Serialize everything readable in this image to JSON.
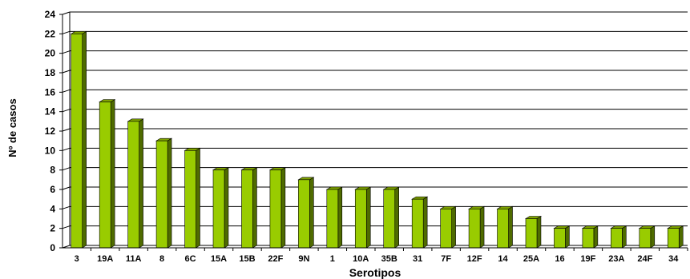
{
  "chart_data": {
    "type": "bar",
    "style": "3d-column",
    "title": "",
    "xlabel": "Serotipos",
    "ylabel": "Nº de casos",
    "ylim": [
      0,
      24
    ],
    "ytick_step": 2,
    "y_ticks": [
      "0",
      "2",
      "4",
      "6",
      "8",
      "10",
      "12",
      "14",
      "16",
      "18",
      "20",
      "22",
      "24"
    ],
    "grid": true,
    "legend": "none",
    "categories": [
      "3",
      "19A",
      "11A",
      "8",
      "6C",
      "15A",
      "15B",
      "22F",
      "9N",
      "1",
      "10A",
      "35B",
      "31",
      "7F",
      "12F",
      "14",
      "25A",
      "16",
      "19F",
      "23A",
      "24F",
      "34"
    ],
    "values": [
      22,
      15,
      13,
      11,
      10,
      8,
      8,
      8,
      7,
      6,
      6,
      6,
      5,
      4,
      4,
      4,
      3,
      2,
      2,
      2,
      2,
      2
    ],
    "colors": {
      "bar_front": "#99CC00",
      "bar_side": "#4F6B00",
      "bar_top": "#7FA300",
      "grid": "#000000",
      "axis": "#000000"
    }
  }
}
